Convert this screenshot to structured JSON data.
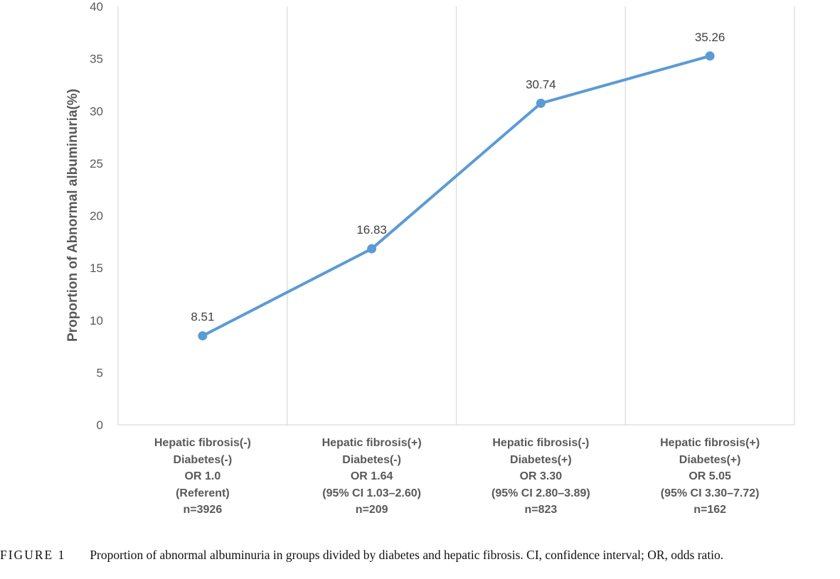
{
  "chart_data": {
    "type": "line",
    "title": "",
    "xlabel": "",
    "ylabel": "Proportion of Abnormal albuminuria(%)",
    "ylim": [
      0,
      40
    ],
    "yticks": [
      0,
      5,
      10,
      15,
      20,
      25,
      30,
      35,
      40
    ],
    "grid": "vertical gridlines between categories",
    "legend": "none",
    "line_color": "#5B9BD5",
    "categories": [
      [
        "Hepatic fibrosis(-)",
        "Diabetes(-)",
        "OR 1.0",
        "(Referent)",
        "n=3926"
      ],
      [
        "Hepatic fibrosis(+)",
        "Diabetes(-)",
        "OR 1.64",
        "(95% CI 1.03–2.60)",
        "n=209"
      ],
      [
        "Hepatic fibrosis(-)",
        "Diabetes(+)",
        "OR 3.30",
        "(95% CI 2.80–3.89)",
        "n=823"
      ],
      [
        "Hepatic fibrosis(+)",
        "Diabetes(+)",
        "OR 5.05",
        "(95% CI 3.30–7.72)",
        "n=162"
      ]
    ],
    "values": [
      8.51,
      16.83,
      30.74,
      35.26
    ],
    "data_labels": [
      "8.51",
      "16.83",
      "30.74",
      "35.26"
    ]
  },
  "caption": {
    "label": "FIGURE 1",
    "text": "Proportion of abnormal albuminuria in groups divided by diabetes and hepatic fibrosis. CI, confidence interval; OR, odds ratio."
  }
}
